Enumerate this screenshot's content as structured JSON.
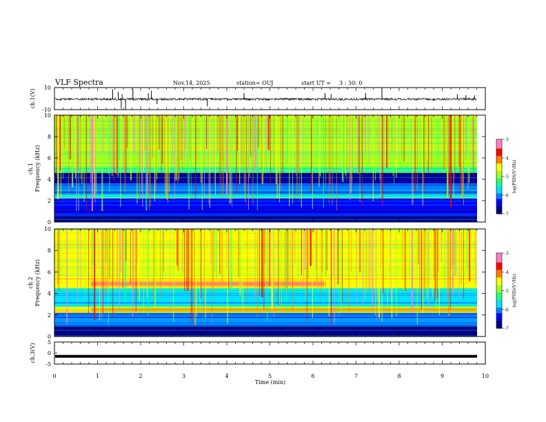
{
  "header": {
    "title": "VLF Spectra",
    "date": "Nov.14, 2025",
    "station": "station= OUJ",
    "start_label": "start  UT =",
    "start_time": "3 : 30: 0"
  },
  "colors": {
    "background": "#ffffff",
    "axis": "#000000",
    "colormap": [
      "#000080",
      "#0000ff",
      "#0080ff",
      "#00e0ff",
      "#20ff80",
      "#a0ff20",
      "#ffff00",
      "#ff8000",
      "#ff0000",
      "#ff80c0"
    ]
  },
  "chart_data": [
    {
      "type": "line",
      "name": "ch1-waveform",
      "ylabel": "ch.1(V)",
      "ylim": [
        -10,
        10
      ],
      "ytick_labels": [
        "10",
        "-10"
      ],
      "baseline": -0.5,
      "spikes": [
        {
          "t": 1.35,
          "v": 8.5
        },
        {
          "t": 1.48,
          "v": 6
        },
        {
          "t": 1.55,
          "v": -9
        },
        {
          "t": 1.65,
          "v": -10
        },
        {
          "t": 1.82,
          "v": 9
        },
        {
          "t": 1.57,
          "v": 4
        },
        {
          "t": 2.18,
          "v": 5
        },
        {
          "t": 2.25,
          "v": 7
        },
        {
          "t": 2.38,
          "v": -5
        },
        {
          "t": 3.55,
          "v": -7
        },
        {
          "t": 4.4,
          "v": 5
        },
        {
          "t": 6.28,
          "v": 5
        },
        {
          "t": 6.42,
          "v": 4
        },
        {
          "t": 7.22,
          "v": 5
        },
        {
          "t": 7.6,
          "v": 10
        },
        {
          "t": 9.35,
          "v": 4
        },
        {
          "t": 9.55,
          "v": 3
        },
        {
          "t": 9.75,
          "v": 3
        }
      ]
    },
    {
      "type": "heatmap",
      "name": "ch1-spectrogram",
      "ylabel": "ch.1\nFrequency (kHz)",
      "ylim": [
        0,
        10
      ],
      "ytick_labels": [
        "0",
        "2",
        "4",
        "6",
        "8",
        "10"
      ],
      "colorbar": {
        "label": "log(PSD)(V²/Hz)",
        "range": [
          -7,
          -3
        ],
        "tick_labels": [
          "-3",
          "-4",
          "-5",
          "-6",
          "-7"
        ]
      },
      "bands": [
        {
          "f_low": 0.0,
          "f_high": 0.6,
          "level": 0.05
        },
        {
          "f_low": 0.6,
          "f_high": 1.2,
          "level": 0.15
        },
        {
          "f_low": 1.2,
          "f_high": 2.2,
          "level": 0.1
        },
        {
          "f_low": 2.2,
          "f_high": 2.6,
          "level": 0.35
        },
        {
          "f_low": 2.6,
          "f_high": 3.6,
          "level": 0.2
        },
        {
          "f_low": 3.6,
          "f_high": 4.6,
          "level": 0.08
        },
        {
          "f_low": 4.6,
          "f_high": 5.1,
          "level": 0.42
        },
        {
          "f_low": 5.1,
          "f_high": 10.0,
          "level": 0.55
        }
      ]
    },
    {
      "type": "heatmap",
      "name": "ch2-spectrogram",
      "ylabel": "ch.2\nFrequency (kHz)",
      "ylim": [
        0,
        10
      ],
      "ytick_labels": [
        "0",
        "2",
        "4",
        "6",
        "8",
        "10"
      ],
      "colorbar": {
        "label": "log(PSD)(V²/Hz)",
        "range": [
          -7,
          -3
        ],
        "tick_labels": [
          "-3",
          "-4",
          "-5",
          "-6",
          "-7"
        ]
      },
      "emission_lines": [
        {
          "f_kHz": 4.9,
          "t_start": 0.85,
          "t_end": 6.3,
          "level": 0.9
        },
        {
          "f_kHz": 2.5,
          "t_start": 0.85,
          "t_end": 9.8,
          "level": 0.7
        }
      ],
      "bands": [
        {
          "f_low": 0.0,
          "f_high": 1.0,
          "level": 0.08
        },
        {
          "f_low": 1.0,
          "f_high": 2.2,
          "level": 0.25
        },
        {
          "f_low": 2.2,
          "f_high": 2.8,
          "level": 0.62
        },
        {
          "f_low": 2.8,
          "f_high": 4.5,
          "level": 0.3
        },
        {
          "f_low": 4.5,
          "f_high": 5.3,
          "level": 0.65
        },
        {
          "f_low": 5.3,
          "f_high": 10.0,
          "level": 0.6
        }
      ]
    },
    {
      "type": "line",
      "name": "ch3-waveform",
      "ylabel": "ch.3(V)",
      "ylim": [
        -5,
        5
      ],
      "ytick_labels": [
        "5",
        "0",
        "-5"
      ],
      "value": -1.5
    }
  ],
  "xaxis": {
    "label": "Time (min)",
    "range": [
      0,
      10
    ],
    "tick_labels": [
      "0",
      "1",
      "2",
      "3",
      "4",
      "5",
      "6",
      "7",
      "8",
      "9",
      "10"
    ]
  }
}
